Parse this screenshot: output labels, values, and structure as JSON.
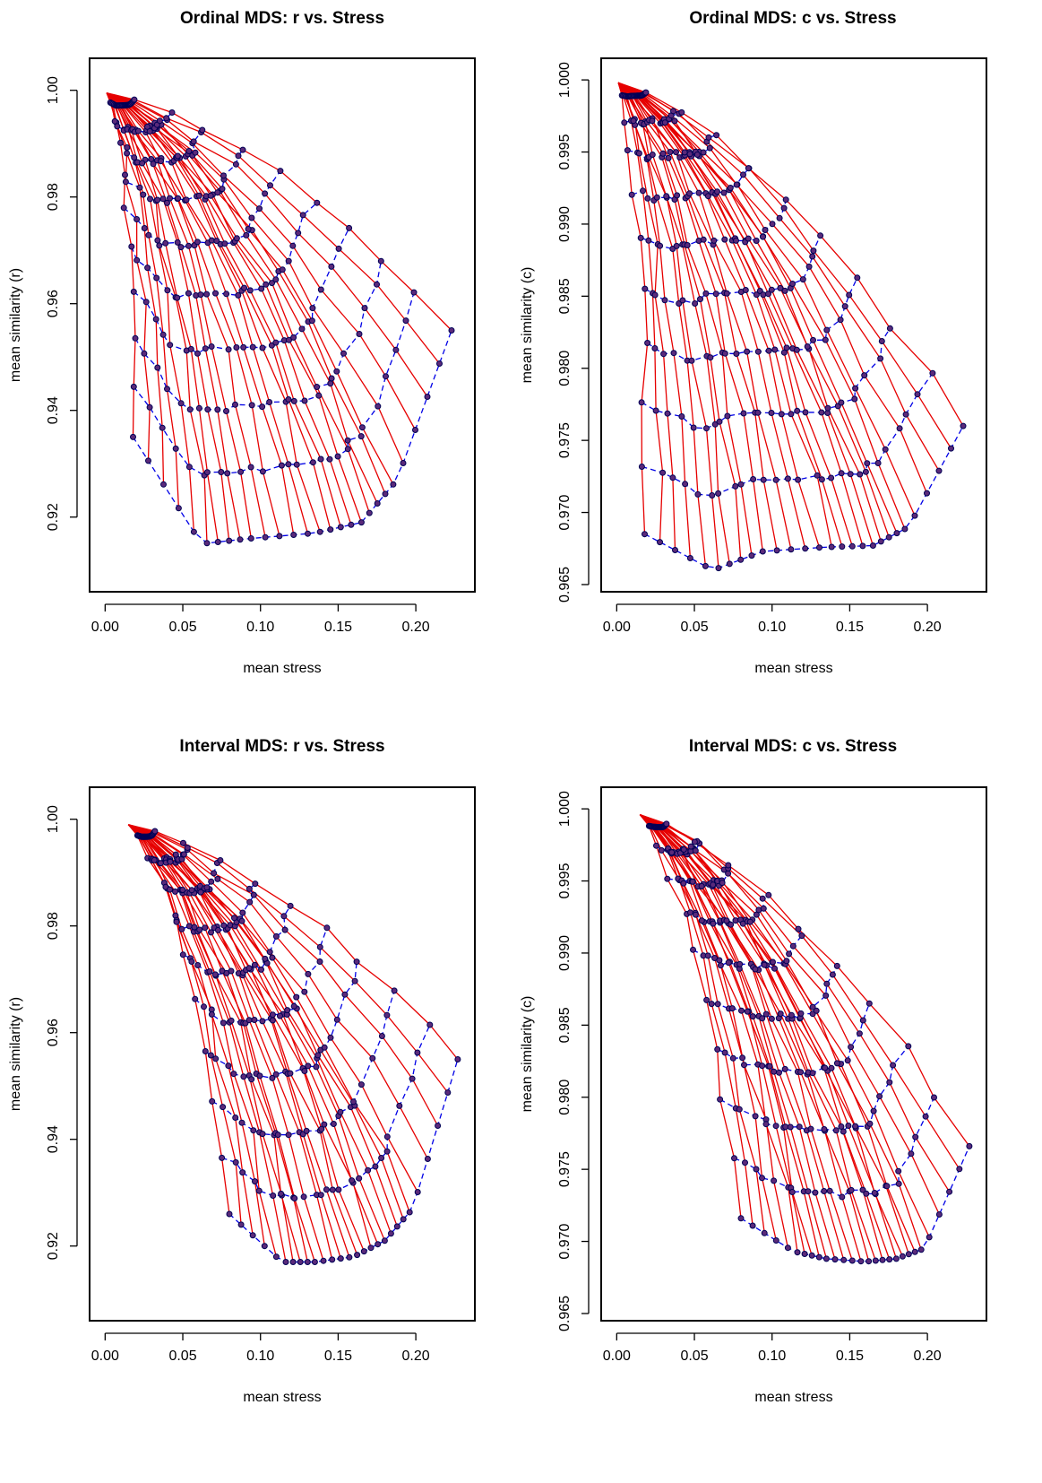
{
  "chart_data": [
    {
      "type": "line",
      "title": "Ordinal MDS: r vs. Stress",
      "xlabel": "mean stress",
      "ylabel": "mean similarity (r)",
      "xlim": [
        -0.01,
        0.238
      ],
      "ylim": [
        0.906,
        1.006
      ],
      "xticks": [
        "0.00",
        "0.05",
        "0.10",
        "0.15",
        "0.20"
      ],
      "xtick_values": [
        0.0,
        0.05,
        0.1,
        0.15,
        0.2
      ],
      "yticks": [
        "0.92",
        "0.94",
        "0.96",
        "0.98",
        "1.00"
      ],
      "ytick_values": [
        0.92,
        0.94,
        0.96,
        0.98,
        1.0
      ],
      "grid": false,
      "series_styles": {
        "solid": "#e60000",
        "dashed": "#0000e6",
        "points": "#5a2a7a"
      },
      "params": {
        "noise_end": [
          0.018,
          0.062,
          0.094,
          0.135,
          0.165,
          0.188,
          0.223
        ],
        "sim_end": [
          0.935,
          0.915,
          0.916,
          0.917,
          0.919,
          0.927,
          0.955
        ],
        "x_start": 0.001,
        "y_start": 0.9995,
        "n_lines": 28,
        "n_levels": 10
      }
    },
    {
      "type": "line",
      "title": "Ordinal MDS: c vs. Stress",
      "xlabel": "mean stress",
      "ylabel": "mean similarity (c)",
      "xlim": [
        -0.01,
        0.238
      ],
      "ylim": [
        0.9645,
        1.0015
      ],
      "xticks": [
        "0.00",
        "0.05",
        "0.10",
        "0.15",
        "0.20"
      ],
      "xtick_values": [
        0.0,
        0.05,
        0.1,
        0.15,
        0.2
      ],
      "yticks": [
        "0.965",
        "0.970",
        "0.975",
        "0.980",
        "0.985",
        "0.990",
        "0.995",
        "1.000"
      ],
      "ytick_values": [
        0.965,
        0.97,
        0.975,
        0.98,
        0.985,
        0.99,
        0.995,
        1.0
      ],
      "grid": false,
      "series_styles": {
        "solid": "#e60000",
        "dashed": "#0000e6",
        "points": "#5a2a7a"
      },
      "params": {
        "noise_end": [
          0.018,
          0.062,
          0.094,
          0.135,
          0.165,
          0.188,
          0.223
        ],
        "sim_end": [
          0.9685,
          0.966,
          0.9673,
          0.9676,
          0.9677,
          0.969,
          0.976
        ],
        "x_start": 0.001,
        "y_start": 0.9998,
        "n_lines": 28,
        "n_levels": 10
      }
    },
    {
      "type": "line",
      "title": "Interval MDS: r vs. Stress",
      "xlabel": "mean stress",
      "ylabel": "mean similarity (r)",
      "xlim": [
        -0.01,
        0.238
      ],
      "ylim": [
        0.906,
        1.006
      ],
      "xticks": [
        "0.00",
        "0.05",
        "0.10",
        "0.15",
        "0.20"
      ],
      "xtick_values": [
        0.0,
        0.05,
        0.1,
        0.15,
        0.2
      ],
      "yticks": [
        "0.92",
        "0.94",
        "0.96",
        "0.98",
        "1.00"
      ],
      "ytick_values": [
        0.92,
        0.94,
        0.96,
        0.98,
        1.0
      ],
      "grid": false,
      "series_styles": {
        "solid": "#e60000",
        "dashed": "#0000e6",
        "points": "#5a2a7a"
      },
      "params": {
        "noise_end": [
          0.08,
          0.114,
          0.135,
          0.16,
          0.18,
          0.198,
          0.227
        ],
        "sim_end": [
          0.926,
          0.917,
          0.917,
          0.918,
          0.921,
          0.927,
          0.955
        ],
        "x_start": 0.015,
        "y_start": 0.999,
        "n_lines": 28,
        "n_levels": 10
      }
    },
    {
      "type": "line",
      "title": "Interval MDS: c vs. Stress",
      "xlabel": "mean stress",
      "ylabel": "mean similarity (c)",
      "xlim": [
        -0.01,
        0.238
      ],
      "ylim": [
        0.9645,
        1.0015
      ],
      "xticks": [
        "0.00",
        "0.05",
        "0.10",
        "0.15",
        "0.20"
      ],
      "xtick_values": [
        0.0,
        0.05,
        0.1,
        0.15,
        0.2
      ],
      "yticks": [
        "0.965",
        "0.970",
        "0.975",
        "0.980",
        "0.985",
        "0.990",
        "0.995",
        "1.000"
      ],
      "ytick_values": [
        0.965,
        0.97,
        0.975,
        0.98,
        0.985,
        0.99,
        0.995,
        1.0
      ],
      "grid": false,
      "series_styles": {
        "solid": "#e60000",
        "dashed": "#0000e6",
        "points": "#5a2a7a"
      },
      "params": {
        "noise_end": [
          0.08,
          0.114,
          0.135,
          0.16,
          0.18,
          0.198,
          0.227
        ],
        "sim_end": [
          0.9716,
          0.9693,
          0.9688,
          0.9686,
          0.9688,
          0.9695,
          0.9766
        ],
        "x_start": 0.015,
        "y_start": 0.9996,
        "n_lines": 28,
        "n_levels": 10
      }
    }
  ]
}
